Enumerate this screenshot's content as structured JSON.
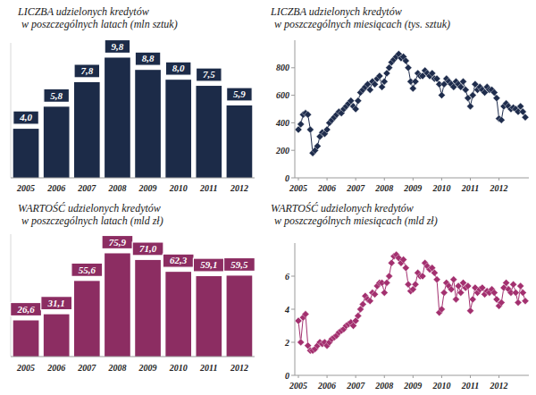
{
  "chart_data": [
    {
      "type": "bar",
      "title": "LICZBA udzielonych kredytów",
      "subtitle": "w poszczególnych latach (mln sztuk)",
      "categories": [
        "2005",
        "2006",
        "2007",
        "2008",
        "2009",
        "2010",
        "2011",
        "2012"
      ],
      "values": [
        4.0,
        5.8,
        7.8,
        9.8,
        8.8,
        8.0,
        7.5,
        5.9
      ],
      "value_labels": [
        "4,0",
        "5,8",
        "7,8",
        "9,8",
        "8,8",
        "8,0",
        "7,5",
        "5,9"
      ],
      "color": "#1c2b48",
      "ylim": [
        0,
        11
      ],
      "data_labels": true,
      "tick_labels": "x",
      "grid": false
    },
    {
      "type": "line",
      "title": "LICZBA udzielonych kredytów",
      "subtitle": "w poszczególnych miesiącach (tys. sztuk)",
      "categories": [
        "2005",
        null,
        null,
        null,
        null,
        null,
        null,
        null,
        null,
        null,
        null,
        null,
        "2006",
        null,
        null,
        null,
        null,
        null,
        null,
        null,
        null,
        null,
        null,
        null,
        "2007",
        null,
        null,
        null,
        null,
        null,
        null,
        null,
        null,
        null,
        null,
        null,
        "2008",
        null,
        null,
        null,
        null,
        null,
        null,
        null,
        null,
        null,
        null,
        null,
        "2009",
        null,
        null,
        null,
        null,
        null,
        null,
        null,
        null,
        null,
        null,
        null,
        "2010",
        null,
        null,
        null,
        null,
        null,
        null,
        null,
        null,
        null,
        null,
        null,
        "2011",
        null,
        null,
        null,
        null,
        null,
        null,
        null,
        null,
        null,
        null,
        null,
        "2012",
        null,
        null,
        null,
        null,
        null,
        null,
        null,
        null,
        null,
        null,
        null
      ],
      "values": [
        350,
        390,
        460,
        470,
        460,
        350,
        180,
        200,
        230,
        300,
        330,
        320,
        350,
        400,
        420,
        440,
        460,
        480,
        470,
        500,
        520,
        540,
        560,
        520,
        500,
        560,
        620,
        640,
        660,
        680,
        640,
        700,
        680,
        720,
        740,
        660,
        700,
        760,
        800,
        840,
        860,
        880,
        900,
        870,
        880,
        850,
        800,
        700,
        650,
        700,
        760,
        740,
        740,
        780,
        760,
        740,
        760,
        720,
        720,
        680,
        600,
        680,
        720,
        700,
        680,
        660,
        700,
        680,
        660,
        700,
        640,
        580,
        520,
        600,
        680,
        640,
        660,
        640,
        620,
        660,
        640,
        640,
        620,
        580,
        430,
        420,
        520,
        540,
        520,
        500,
        510,
        500,
        480,
        520,
        480,
        440
      ],
      "color": "#1f2d4d",
      "marker": "diamond",
      "line_style": "solid",
      "ylim": [
        0,
        1000
      ],
      "yticks": [
        0,
        200,
        400,
        600,
        800
      ],
      "grid": false
    },
    {
      "type": "bar",
      "title": "WARTOŚĆ udzielonych kredytów",
      "subtitle": "w poszczególnych latach (mld zł)",
      "categories": [
        "2005",
        "2006",
        "2007",
        "2008",
        "2009",
        "2010",
        "2011",
        "2012"
      ],
      "values": [
        26.6,
        31.1,
        55.6,
        75.9,
        71.0,
        62.3,
        59.1,
        59.5
      ],
      "value_labels": [
        "26,6",
        "31,1",
        "55,6",
        "75,9",
        "71,0",
        "62,3",
        "59,1",
        "59,5"
      ],
      "color": "#8c2d62",
      "ylim": [
        0,
        90
      ],
      "data_labels": true,
      "tick_labels": "x",
      "grid": false
    },
    {
      "type": "line",
      "title": "WARTOŚĆ udzielonych kredytów",
      "subtitle": "w poszczególnych miesiącach (mld zł)",
      "categories": [
        "2005",
        null,
        null,
        null,
        null,
        null,
        null,
        null,
        null,
        null,
        null,
        null,
        "2006",
        null,
        null,
        null,
        null,
        null,
        null,
        null,
        null,
        null,
        null,
        null,
        "2007",
        null,
        null,
        null,
        null,
        null,
        null,
        null,
        null,
        null,
        null,
        null,
        "2008",
        null,
        null,
        null,
        null,
        null,
        null,
        null,
        null,
        null,
        null,
        null,
        "2009",
        null,
        null,
        null,
        null,
        null,
        null,
        null,
        null,
        null,
        null,
        null,
        "2010",
        null,
        null,
        null,
        null,
        null,
        null,
        null,
        null,
        null,
        null,
        null,
        "2011",
        null,
        null,
        null,
        null,
        null,
        null,
        null,
        null,
        null,
        null,
        null,
        "2012",
        null,
        null,
        null,
        null,
        null,
        null,
        null,
        null,
        null,
        null,
        null
      ],
      "values": [
        3.3,
        2.0,
        3.5,
        3.7,
        1.8,
        1.5,
        1.5,
        1.6,
        1.8,
        2.0,
        1.9,
        2.0,
        1.8,
        2.0,
        2.2,
        2.3,
        2.4,
        2.6,
        2.7,
        2.8,
        3.0,
        3.1,
        3.2,
        3.0,
        3.3,
        3.6,
        4.0,
        4.3,
        4.8,
        4.6,
        4.5,
        5.0,
        4.9,
        5.4,
        5.6,
        5.6,
        5.0,
        5.6,
        6.0,
        6.8,
        7.2,
        7.3,
        7.1,
        6.8,
        7.0,
        6.5,
        5.5,
        5.1,
        5.2,
        5.5,
        6.2,
        6.0,
        6.0,
        6.8,
        6.6,
        6.4,
        6.5,
        6.2,
        5.8,
        3.8,
        4.0,
        5.0,
        5.6,
        5.4,
        5.2,
        5.8,
        4.6,
        5.4,
        5.0,
        5.6,
        5.3,
        5.4,
        3.9,
        4.6,
        5.3,
        5.0,
        5.2,
        5.3,
        4.9,
        5.1,
        5.0,
        5.2,
        5.0,
        4.6,
        4.2,
        4.4,
        5.3,
        5.6,
        5.2,
        5.0,
        5.5,
        5.0,
        4.4,
        5.4,
        5.0,
        4.5
      ],
      "color": "#a3306f",
      "marker": "diamond",
      "line_style": "solid",
      "ylim": [
        0,
        8
      ],
      "yticks": [
        0,
        2,
        4,
        6
      ],
      "grid": false
    }
  ]
}
